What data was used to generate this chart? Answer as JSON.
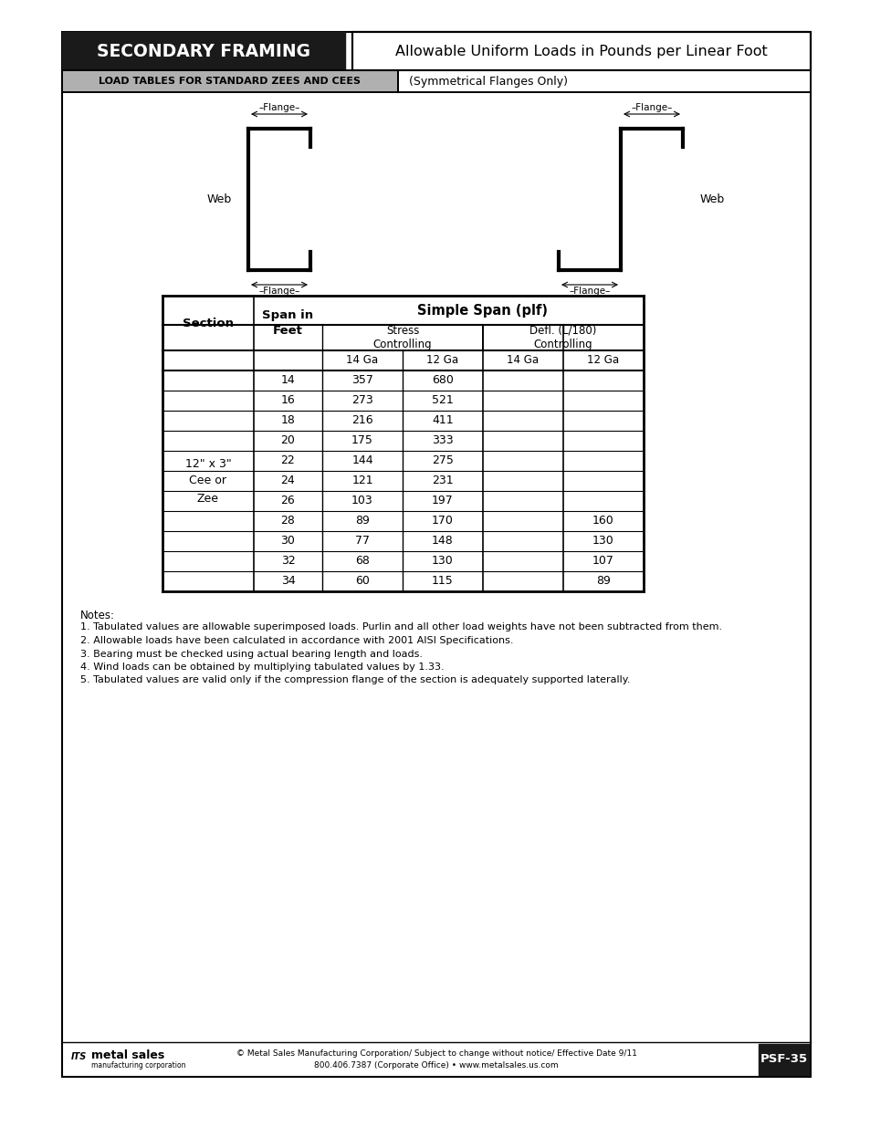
{
  "page_title_left": "SECONDARY FRAMING",
  "page_title_right": "Allowable Uniform Loads in Pounds per Linear Foot",
  "section_header": "LOAD TABLES FOR STANDARD ZEES AND CEES",
  "section_header_note": "(Symmetrical Flanges Only)",
  "table_main_header": "Simple Span (plf)",
  "ga_14": "14 Ga",
  "ga_12": "12 Ga",
  "section_label": "12\" x 3\"\nCee or\nZee",
  "table_data": [
    [
      14,
      357,
      680,
      "",
      ""
    ],
    [
      16,
      273,
      521,
      "",
      ""
    ],
    [
      18,
      216,
      411,
      "",
      ""
    ],
    [
      20,
      175,
      333,
      "",
      ""
    ],
    [
      22,
      144,
      275,
      "",
      ""
    ],
    [
      24,
      121,
      231,
      "",
      ""
    ],
    [
      26,
      103,
      197,
      "",
      ""
    ],
    [
      28,
      89,
      170,
      "",
      160
    ],
    [
      30,
      77,
      148,
      "",
      130
    ],
    [
      32,
      68,
      130,
      "",
      107
    ],
    [
      34,
      60,
      115,
      "",
      89
    ]
  ],
  "notes": [
    "Notes:",
    "1. Tabulated values are allowable superimposed loads. Purlin and all other load weights have not been subtracted from them.",
    "2. Allowable loads have been calculated in accordance with 2001 AISI Specifications.",
    "3. Bearing must be checked using actual bearing length and loads.",
    "4. Wind loads can be obtained by multiplying tabulated values by 1.33.",
    "5. Tabulated values are valid only if the compression flange of the section is adequately supported laterally."
  ],
  "footer_center": "© Metal Sales Manufacturing Corporation/ Subject to change without notice/ Effective Date 9/11\n800.406.7387 (Corporate Office) • www.metalsales.us.com",
  "footer_right": "PSF-35",
  "bg_color": "#ffffff",
  "header_bg": "#1a1a1a",
  "section_header_bg": "#b0b0b0"
}
